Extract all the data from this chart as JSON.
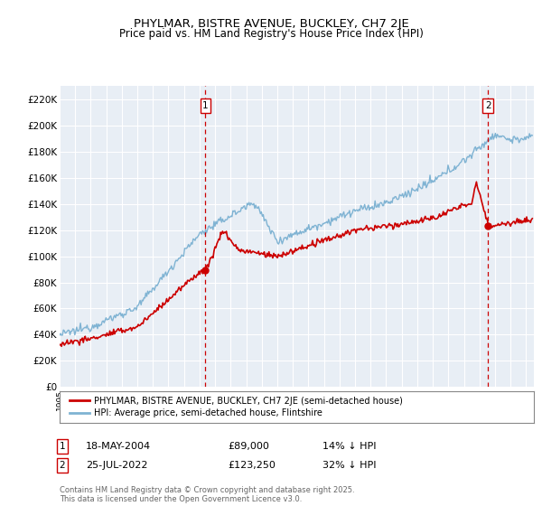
{
  "title": "PHYLMAR, BISTRE AVENUE, BUCKLEY, CH7 2JE",
  "subtitle": "Price paid vs. HM Land Registry's House Price Index (HPI)",
  "ylabel_ticks": [
    "£0",
    "£20K",
    "£40K",
    "£60K",
    "£80K",
    "£100K",
    "£120K",
    "£140K",
    "£160K",
    "£180K",
    "£200K",
    "£220K"
  ],
  "ytick_values": [
    0,
    20000,
    40000,
    60000,
    80000,
    100000,
    120000,
    140000,
    160000,
    180000,
    200000,
    220000
  ],
  "ylim": [
    0,
    230000
  ],
  "xlim_start": 1995.0,
  "xlim_end": 2025.5,
  "hpi_color": "#7fb3d3",
  "price_color": "#cc0000",
  "plot_bg_color": "#e8eef5",
  "transaction1_x": 2004.38,
  "transaction1_y": 89000,
  "transaction2_x": 2022.56,
  "transaction2_y": 123250,
  "transaction1_label": "18-MAY-2004",
  "transaction1_price": "£89,000",
  "transaction1_hpi": "14% ↓ HPI",
  "transaction2_label": "25-JUL-2022",
  "transaction2_price": "£123,250",
  "transaction2_hpi": "32% ↓ HPI",
  "legend_label1": "PHYLMAR, BISTRE AVENUE, BUCKLEY, CH7 2JE (semi-detached house)",
  "legend_label2": "HPI: Average price, semi-detached house, Flintshire",
  "footer": "Contains HM Land Registry data © Crown copyright and database right 2025.\nThis data is licensed under the Open Government Licence v3.0."
}
